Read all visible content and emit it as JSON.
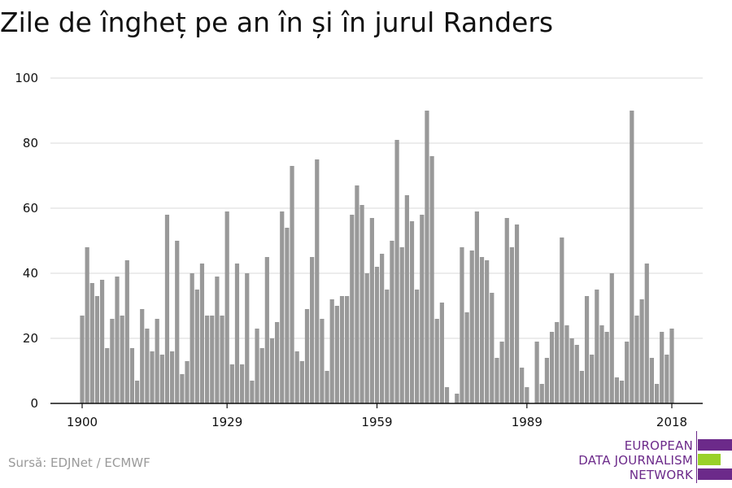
{
  "title": "Zile de îngheț pe an în și în jurul Randers",
  "source": "Sursă: EDJNet / ECMWF",
  "logo": {
    "lines": [
      "EUROPEAN",
      "DATA JOURNALISM",
      "NETWORK"
    ],
    "colors": {
      "text": "#6c2a8a",
      "primary": "#6c2a8a",
      "accent": "#99d12a"
    }
  },
  "chart_data": {
    "type": "bar",
    "title": "Zile de îngheț pe an în și în jurul Randers",
    "xlabel": "",
    "ylabel": "",
    "ylim": [
      0,
      100
    ],
    "yticks": [
      0,
      20,
      40,
      60,
      80,
      100
    ],
    "xticks": [
      1900,
      1929,
      1959,
      1989,
      2018
    ],
    "grid": true,
    "bar_color": "#999999",
    "x": [
      1900,
      1901,
      1902,
      1903,
      1904,
      1905,
      1906,
      1907,
      1908,
      1909,
      1910,
      1911,
      1912,
      1913,
      1914,
      1915,
      1916,
      1917,
      1918,
      1919,
      1920,
      1921,
      1922,
      1923,
      1924,
      1925,
      1926,
      1927,
      1928,
      1929,
      1930,
      1931,
      1932,
      1933,
      1934,
      1935,
      1936,
      1937,
      1938,
      1939,
      1940,
      1941,
      1942,
      1943,
      1944,
      1945,
      1946,
      1947,
      1948,
      1949,
      1950,
      1951,
      1952,
      1953,
      1954,
      1955,
      1956,
      1957,
      1958,
      1959,
      1960,
      1961,
      1962,
      1963,
      1964,
      1965,
      1966,
      1967,
      1968,
      1969,
      1970,
      1971,
      1972,
      1973,
      1974,
      1975,
      1976,
      1977,
      1978,
      1979,
      1980,
      1981,
      1982,
      1983,
      1984,
      1985,
      1986,
      1987,
      1988,
      1989,
      1990,
      1991,
      1992,
      1993,
      1994,
      1995,
      1996,
      1997,
      1998,
      1999,
      2000,
      2001,
      2002,
      2003,
      2004,
      2005,
      2006,
      2007,
      2008,
      2009,
      2010,
      2011,
      2012,
      2013,
      2014,
      2015,
      2016,
      2017,
      2018
    ],
    "values": [
      27,
      48,
      37,
      33,
      38,
      17,
      26,
      39,
      27,
      44,
      17,
      7,
      29,
      23,
      16,
      26,
      15,
      58,
      16,
      50,
      9,
      13,
      40,
      35,
      43,
      27,
      27,
      39,
      27,
      59,
      12,
      43,
      12,
      40,
      7,
      23,
      17,
      45,
      20,
      25,
      59,
      54,
      73,
      16,
      13,
      29,
      45,
      75,
      26,
      10,
      32,
      30,
      33,
      33,
      58,
      67,
      61,
      40,
      57,
      42,
      46,
      35,
      50,
      81,
      48,
      64,
      56,
      35,
      58,
      90,
      76,
      26,
      31,
      5,
      0,
      3,
      48,
      28,
      47,
      59,
      45,
      44,
      34,
      14,
      19,
      57,
      48,
      55,
      11,
      5,
      0,
      19,
      6,
      14,
      22,
      25,
      51,
      24,
      20,
      18,
      10,
      33,
      15,
      35,
      24,
      22,
      40,
      8,
      7,
      19,
      90,
      27,
      32,
      43,
      14,
      6,
      22,
      15,
      23
    ]
  }
}
